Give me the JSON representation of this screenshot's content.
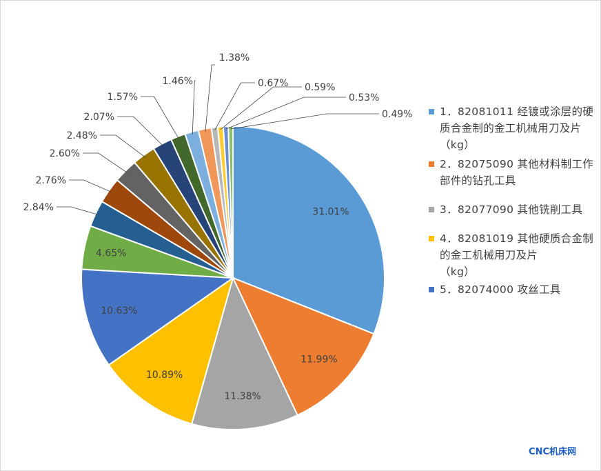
{
  "chart_data": {
    "type": "pie",
    "title": "",
    "slices": [
      {
        "label": "1．82081011 经镀或涂层的硬质合金制的金工机械用刀及片（kg）",
        "value": 31.01,
        "display": "31.01%",
        "color": "#5b9bd5"
      },
      {
        "label": "2．82075090 其他材料制工作部件的钻孔工具",
        "value": 11.99,
        "display": "11.99%",
        "color": "#ed7d31"
      },
      {
        "label": "3．82077090 其他铣削工具",
        "value": 11.38,
        "display": "11.38%",
        "color": "#a5a5a5"
      },
      {
        "label": "4．82081019 其他硬质合金制的金工机械用刀及片（kg）",
        "value": 10.89,
        "display": "10.89%",
        "color": "#ffc000"
      },
      {
        "label": "5．82074000 攻丝工具",
        "value": 10.63,
        "display": "10.63%",
        "color": "#4472c4"
      },
      {
        "label": "",
        "value": 4.65,
        "display": "4.65%",
        "color": "#70ad47"
      },
      {
        "label": "",
        "value": 2.84,
        "display": "2.84%",
        "color": "#255e91"
      },
      {
        "label": "",
        "value": 2.76,
        "display": "2.76%",
        "color": "#9e480e"
      },
      {
        "label": "",
        "value": 2.6,
        "display": "2.60%",
        "color": "#636363"
      },
      {
        "label": "",
        "value": 2.48,
        "display": "2.48%",
        "color": "#997300"
      },
      {
        "label": "",
        "value": 2.07,
        "display": "2.07%",
        "color": "#264478"
      },
      {
        "label": "",
        "value": 1.57,
        "display": "1.57%",
        "color": "#43682b"
      },
      {
        "label": "",
        "value": 1.46,
        "display": "1.46%",
        "color": "#7cafdd"
      },
      {
        "label": "",
        "value": 1.38,
        "display": "1.38%",
        "color": "#f1975a"
      },
      {
        "label": "",
        "value": 0.67,
        "display": "0.67%",
        "color": "#b7b7b7"
      },
      {
        "label": "",
        "value": 0.59,
        "display": "0.59%",
        "color": "#ffcd33"
      },
      {
        "label": "",
        "value": 0.53,
        "display": "0.53%",
        "color": "#698ed0"
      },
      {
        "label": "",
        "value": 0.49,
        "display": "0.49%",
        "color": "#8cc168"
      }
    ],
    "legend_placement": "right"
  },
  "legend": {
    "items": [
      {
        "text": "1．82081011 经镀或涂层的硬质合金制的金工机械用刀及片　　　（kg）",
        "color": "#5b9bd5"
      },
      {
        "text": "2．82075090 其他材料制工作部件的钻孔工具",
        "color": "#ed7d31"
      },
      {
        "text": "3．82077090 其他铣削工具",
        "color": "#a5a5a5"
      },
      {
        "text": "4．82081019 其他硬质合金制的金工机械用刀及片　　　（kg）",
        "color": "#ffc000"
      },
      {
        "text": "5．82074000 攻丝工具",
        "color": "#4472c4"
      }
    ]
  },
  "watermark": "CNC机床网"
}
